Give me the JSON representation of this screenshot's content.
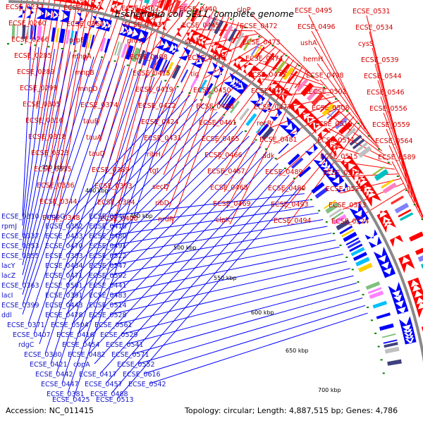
{
  "title": "Escherichia coli SE11, complete genome",
  "footer": {
    "accession": "Accession: NC_011415",
    "stats": "Topology: circular; Length: 4,887,515 bp; Genes: 4,786"
  },
  "colors": {
    "plus": "#ff0000",
    "minus": "#0000ff",
    "backbone": "#888888",
    "tick": "#008000"
  },
  "ticks": [
    "350 kbp",
    "400 kbp",
    "450 kbp",
    "500 kbp",
    "550 kbp",
    "600 kbp",
    "650 kbp",
    "700 kbp"
  ],
  "labels_plus": [
    "ECSE_0237",
    "ECSE_0260",
    "ECSE_0266",
    "ECSE_0285",
    "ECSE_0289",
    "ECSE_0299",
    "ECSE_0305",
    "ECSE_0316",
    "ECSE_0318",
    "ECSE_0323",
    "ECSE_0335",
    "ECSE_0336",
    "ECSE_0344",
    "ECSE_0348",
    "ECSE_0360",
    "ECSE_0362",
    "prpE",
    "mhpA",
    "mhpB",
    "mhpD",
    "ECSE_0374",
    "tauB",
    "tauA",
    "tauD",
    "ECSE_0389",
    "ECSE_0393",
    "ECSE_0394",
    "ECSE_0400",
    "ECSE_0402",
    "ECSE_0403",
    "proY",
    "ECSE_0408",
    "ECSE_0415",
    "ECSE_0419",
    "ECSE_0422",
    "ECSE_0424",
    "ECSE_0431",
    "ribH",
    "tgt",
    "secD",
    "ribD",
    "nrdR",
    "ECSE_0440",
    "ECSE_0445",
    "secF",
    "ECSE_0448",
    "tig",
    "ECSE_0450",
    "ECSE_0460",
    "ECSE_0461",
    "ECSE_0465",
    "ECSE_0466",
    "ECSE_0467",
    "ECSE_0468",
    "ECSE_0469",
    "clpX",
    "clpP",
    "ECSE_0472",
    "ECSE_0473",
    "ECSE_0474",
    "ECSE_0475",
    "ECSE_0476",
    "ECSE_0477",
    "recR",
    "ECSE_0481",
    "adk",
    "ECSE_0489",
    "ECSE_0490",
    "ECSE_0493",
    "ECSE_0494",
    "ECSE_0495",
    "ECSE_0496",
    "ushA",
    "hemH",
    "ECSE_0498",
    "ECSE_0502",
    "ECSE_0508",
    "ECSE_0510",
    "ECSE_0511",
    "ECSE_0515",
    "ECSE_0519",
    "ECSE_0521",
    "ECSE_0523",
    "ECSE_0524",
    "ECSE_0531",
    "ECSE_0534",
    "cysS",
    "ECSE_0539",
    "ECSE_0544",
    "ECSE_0546",
    "ECSE_0556",
    "ECSE_0559",
    "ECSE_0564",
    "ECSE_0589"
  ],
  "labels_minus": [
    "ECSE_0310",
    "rpmJ",
    "ECSE_0337",
    "ECSE_0353",
    "ECSE_0355",
    "lacY",
    "lacZ",
    "ECSE_0363",
    "lacI",
    "ECSE_0399",
    "ddl",
    "ECSE_0371",
    "ECSE_0407",
    "rdgC",
    "ECSE_0380",
    "ECSE_0421",
    "ECSE_0442",
    "ECSE_0447",
    "ECSE_0381",
    "ECSE_0425",
    "ampG",
    "ECSE_0382",
    "ECSE_0433",
    "ECSE_0470",
    "ECSE_0383",
    "ECSE_0434",
    "ECSE_0471",
    "ECSE_0501",
    "ECSE_0391",
    "ECSE_0443",
    "ECSE_0478",
    "ECSE_0504",
    "ECSE_0416",
    "ECSE_0454",
    "ECSE_0482",
    "copA",
    "ECSE_0417",
    "ECSE_0457",
    "ECSE_0488",
    "ECSE_0513",
    "ECSE_0540",
    "ECSE_0418",
    "ECSE_0480",
    "ECSE_0491",
    "ECSE_0522",
    "ECSE_0547",
    "ECSE_0592",
    "ECSE_0441",
    "ECSE_0483",
    "ECSE_0514",
    "ECSE_0528",
    "ECSE_0561",
    "ECSE_0529",
    "ECSE_0541",
    "ECSE_0571",
    "ECSE_0552",
    "ECSE_0616",
    "ECSE_0542"
  ]
}
